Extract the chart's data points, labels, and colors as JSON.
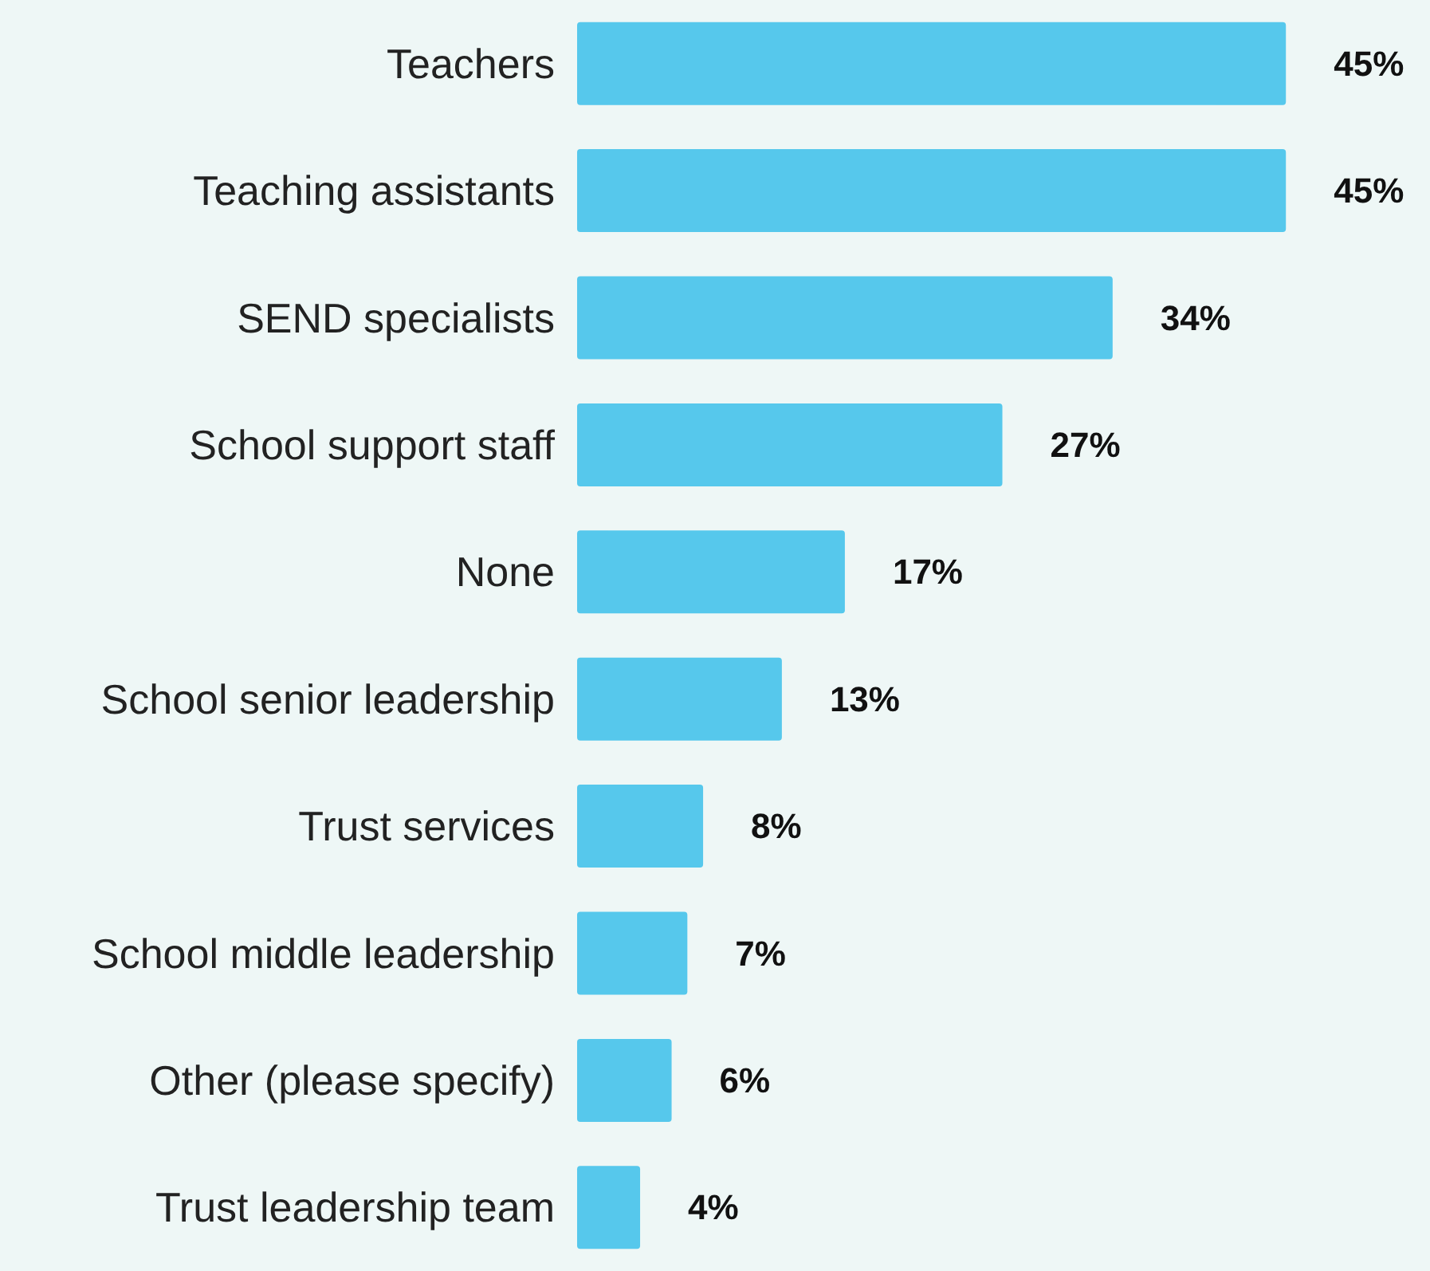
{
  "chart_data": {
    "type": "bar",
    "orientation": "horizontal",
    "categories": [
      "Teachers",
      "Teaching assistants",
      "SEND specialists",
      "School support staff",
      "None",
      "School senior leadership",
      "Trust services",
      "School middle leadership",
      "Other (please specify)",
      "Trust leadership team"
    ],
    "values": [
      45,
      45,
      34,
      27,
      17,
      13,
      8,
      7,
      6,
      4
    ],
    "value_labels": [
      "45%",
      "45%",
      "34%",
      "27%",
      "17%",
      "13%",
      "8%",
      "7%",
      "6%",
      "4%"
    ],
    "color": "#56c8ec",
    "tick_labels": "y"
  }
}
